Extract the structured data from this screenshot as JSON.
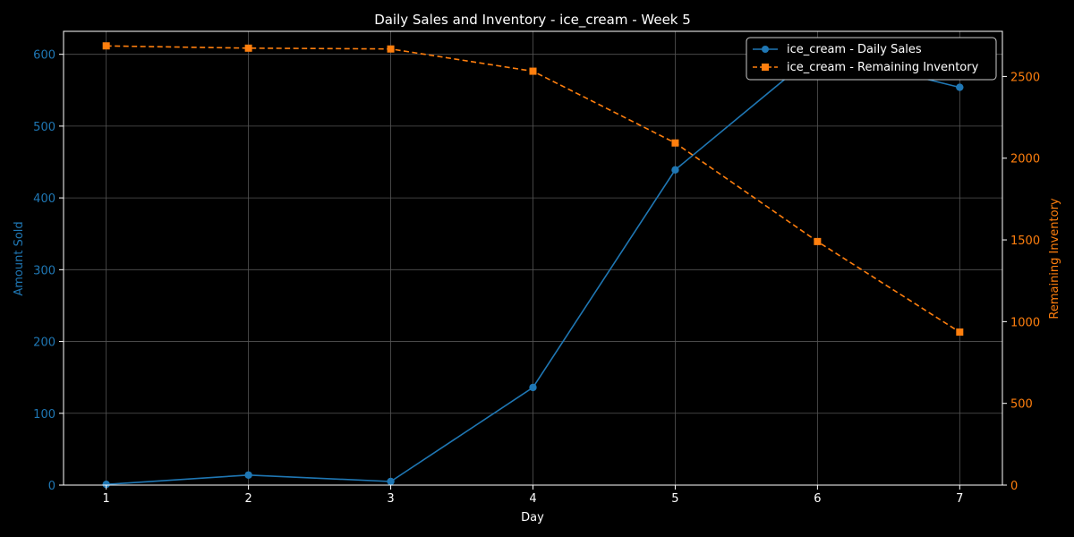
{
  "chart_data": {
    "type": "line",
    "title": "Daily Sales and Inventory - ice_cream - Week 5",
    "xlabel": "Day",
    "ylabel_left": "Amount Sold",
    "ylabel_right": "Remaining Inventory",
    "x": [
      1,
      2,
      3,
      4,
      5,
      6,
      7
    ],
    "x_ticks": [
      "1",
      "2",
      "3",
      "4",
      "5",
      "6",
      "7"
    ],
    "y_left_ticks": [
      "0",
      "100",
      "200",
      "300",
      "400",
      "500",
      "600"
    ],
    "y_right_ticks": [
      "0",
      "500",
      "1000",
      "1500",
      "2000",
      "2500"
    ],
    "ylim_left": [
      0,
      632
    ],
    "ylim_right": [
      0,
      2776
    ],
    "grid": true,
    "legend_position": "top-right",
    "series": [
      {
        "name": "ice_cream - Daily Sales",
        "axis": "left",
        "color": "#1f77b4",
        "marker": "circle",
        "line_style": "solid",
        "values": [
          1,
          14,
          5,
          136,
          439,
          603,
          554
        ]
      },
      {
        "name": "ice_cream - Remaining Inventory",
        "axis": "right",
        "color": "#ff7f0e",
        "marker": "square",
        "line_style": "dashed",
        "values": [
          2687,
          2673,
          2668,
          2532,
          2093,
          1490,
          936
        ]
      }
    ]
  },
  "colors": {
    "background": "#000000",
    "text": "#ffffff",
    "grid": "#555555",
    "left_axis": "#1f77b4",
    "right_axis": "#ff7f0e"
  }
}
